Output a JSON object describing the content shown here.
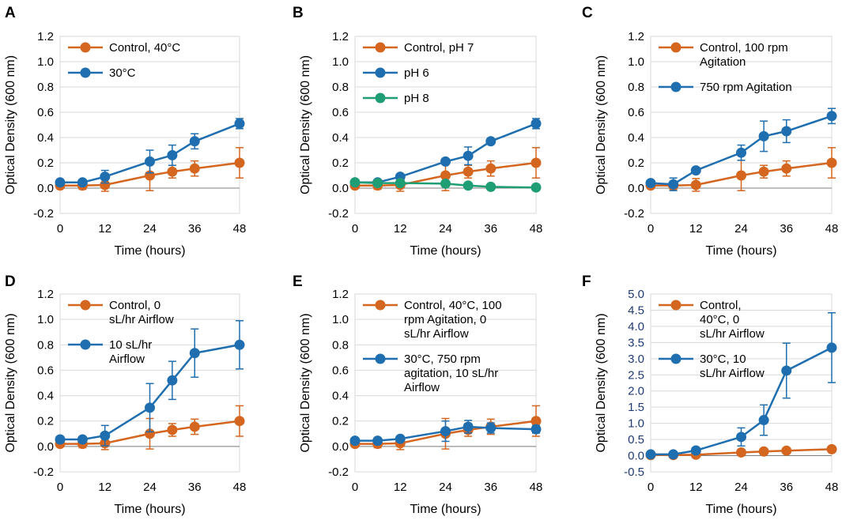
{
  "figure": {
    "colors": {
      "orange": "#d4661f",
      "blue": "#1f6fb0",
      "green": "#1f9e76",
      "navy": "#1f3a75",
      "grid": "#d9d9d9",
      "axis": "#000000"
    }
  },
  "chart_data": [
    {
      "panel": "A",
      "type": "line",
      "title": "",
      "xlabel": "Time (hours)",
      "ylabel": "Optical Density (600 nm)",
      "xticks": [
        0,
        12,
        24,
        36,
        48
      ],
      "xlim": [
        0,
        48
      ],
      "yticks": [
        "-0.2",
        "0.0",
        "0.2",
        "0.4",
        "0.6",
        "0.8",
        "1.0",
        "1.2"
      ],
      "ylim": [
        -0.2,
        1.2
      ],
      "legend": "top-left",
      "series": [
        {
          "name": "Control, 40°C",
          "name_lines": [
            "Control, 40°C"
          ],
          "color": "orange",
          "x": [
            0,
            6,
            12,
            24,
            30,
            36,
            48
          ],
          "y": [
            0.02,
            0.02,
            0.025,
            0.1,
            0.13,
            0.155,
            0.2
          ],
          "err": [
            0.01,
            0.03,
            0.05,
            0.12,
            0.05,
            0.06,
            0.12
          ]
        },
        {
          "name": "30°C",
          "name_lines": [
            "30°C"
          ],
          "color": "blue",
          "x": [
            0,
            6,
            12,
            24,
            30,
            36,
            48
          ],
          "y": [
            0.045,
            0.045,
            0.09,
            0.21,
            0.26,
            0.37,
            0.51
          ],
          "err": [
            0.02,
            0.02,
            0.05,
            0.09,
            0.08,
            0.06,
            0.04
          ]
        }
      ]
    },
    {
      "panel": "B",
      "type": "line",
      "title": "",
      "xlabel": "Time (hours)",
      "ylabel": "Optical Density (600 nm)",
      "xticks": [
        0,
        12,
        24,
        36,
        48
      ],
      "xlim": [
        0,
        48
      ],
      "yticks": [
        "-0.2",
        "0.0",
        "0.2",
        "0.4",
        "0.6",
        "0.8",
        "1.0",
        "1.2"
      ],
      "ylim": [
        -0.2,
        1.2
      ],
      "legend": "top-left",
      "series": [
        {
          "name": "Control, pH 7",
          "name_lines": [
            "Control, pH 7"
          ],
          "color": "orange",
          "x": [
            0,
            6,
            12,
            24,
            30,
            36,
            48
          ],
          "y": [
            0.02,
            0.02,
            0.025,
            0.1,
            0.13,
            0.155,
            0.2
          ],
          "err": [
            0.01,
            0.03,
            0.05,
            0.12,
            0.05,
            0.06,
            0.12
          ]
        },
        {
          "name": "pH 6",
          "name_lines": [
            "pH 6"
          ],
          "color": "blue",
          "x": [
            0,
            6,
            12,
            24,
            30,
            36,
            48
          ],
          "y": [
            0.045,
            0.045,
            0.09,
            0.21,
            0.255,
            0.37,
            0.51
          ],
          "err": [
            0.02,
            0.02,
            0.02,
            0.02,
            0.07,
            0.02,
            0.04
          ]
        },
        {
          "name": "pH 8",
          "name_lines": [
            "pH 8"
          ],
          "color": "green",
          "x": [
            0,
            6,
            12,
            24,
            30,
            36,
            48
          ],
          "y": [
            0.045,
            0.04,
            0.04,
            0.035,
            0.02,
            0.01,
            0.005
          ],
          "err": [
            0.01,
            0.01,
            0.01,
            0.01,
            0.01,
            0.01,
            0.01
          ]
        }
      ]
    },
    {
      "panel": "C",
      "type": "line",
      "title": "",
      "xlabel": "Time (hours)",
      "ylabel": "Optical Density (600 nm)",
      "xticks": [
        0,
        12,
        24,
        36,
        48
      ],
      "xlim": [
        0,
        48
      ],
      "yticks": [
        "-0.2",
        "0.0",
        "0.2",
        "0.4",
        "0.6",
        "0.8",
        "1.0",
        "1.2"
      ],
      "ylim": [
        -0.2,
        1.2
      ],
      "legend": "top-left",
      "series": [
        {
          "name": "Control, 100 rpm Agitation",
          "name_lines": [
            "Control, 100 rpm",
            "Agitation"
          ],
          "color": "orange",
          "x": [
            0,
            6,
            12,
            24,
            30,
            36,
            48
          ],
          "y": [
            0.02,
            0.02,
            0.025,
            0.1,
            0.13,
            0.155,
            0.2
          ],
          "err": [
            0.01,
            0.03,
            0.05,
            0.12,
            0.05,
            0.06,
            0.12
          ]
        },
        {
          "name": "750 rpm Agitation",
          "name_lines": [
            "750 rpm Agitation"
          ],
          "color": "blue",
          "x": [
            0,
            6,
            12,
            24,
            30,
            36,
            48
          ],
          "y": [
            0.04,
            0.03,
            0.14,
            0.28,
            0.41,
            0.45,
            0.57
          ],
          "err": [
            0.02,
            0.05,
            0.02,
            0.06,
            0.12,
            0.09,
            0.06
          ]
        }
      ]
    },
    {
      "panel": "D",
      "type": "line",
      "title": "",
      "xlabel": "Time (hours)",
      "ylabel": "Optical Density (600 nm)",
      "xticks": [
        0,
        12,
        24,
        36,
        48
      ],
      "xlim": [
        0,
        48
      ],
      "yticks": [
        "-0.2",
        "0.0",
        "0.2",
        "0.4",
        "0.6",
        "0.8",
        "1.0",
        "1.2"
      ],
      "ylim": [
        -0.2,
        1.2
      ],
      "legend": "top-left",
      "series": [
        {
          "name": "Control, 0 sL/hr Airflow",
          "name_lines": [
            "Control, 0",
            "sL/hr Airflow"
          ],
          "color": "orange",
          "x": [
            0,
            6,
            12,
            24,
            30,
            36,
            48
          ],
          "y": [
            0.02,
            0.02,
            0.025,
            0.1,
            0.13,
            0.155,
            0.2
          ],
          "err": [
            0.01,
            0.03,
            0.05,
            0.12,
            0.05,
            0.06,
            0.12
          ]
        },
        {
          "name": "10 sL/hr Airflow",
          "name_lines": [
            "10 sL/hr",
            "Airflow"
          ],
          "color": "blue",
          "x": [
            0,
            6,
            12,
            24,
            30,
            36,
            48
          ],
          "y": [
            0.055,
            0.055,
            0.085,
            0.305,
            0.52,
            0.735,
            0.8
          ],
          "err": [
            0.02,
            0.02,
            0.08,
            0.19,
            0.15,
            0.19,
            0.19
          ]
        }
      ]
    },
    {
      "panel": "E",
      "type": "line",
      "title": "",
      "xlabel": "Time (hours)",
      "ylabel": "Optical Density (600 nm)",
      "xticks": [
        0,
        12,
        24,
        36,
        48
      ],
      "xlim": [
        0,
        48
      ],
      "yticks": [
        "-0.2",
        "0.0",
        "0.2",
        "0.4",
        "0.6",
        "0.8",
        "1.0",
        "1.2"
      ],
      "ylim": [
        -0.2,
        1.2
      ],
      "legend": "top-left",
      "series": [
        {
          "name": "Control, 40°C, 100 rpm Agitation, 0 sL/hr Airflow",
          "name_lines": [
            "Control, 40°C, 100",
            "rpm Agitation, 0",
            "sL/hr Airflow"
          ],
          "color": "orange",
          "x": [
            0,
            6,
            12,
            24,
            30,
            36,
            48
          ],
          "y": [
            0.02,
            0.02,
            0.025,
            0.1,
            0.13,
            0.155,
            0.2
          ],
          "err": [
            0.01,
            0.03,
            0.05,
            0.12,
            0.05,
            0.06,
            0.12
          ]
        },
        {
          "name": "30°C, 750 rpm agitation, 10 sL/hr Airflow",
          "name_lines": [
            "30°C, 750 rpm",
            "agitation, 10 sL/hr",
            "Airflow"
          ],
          "color": "blue",
          "x": [
            0,
            6,
            12,
            24,
            30,
            36,
            48
          ],
          "y": [
            0.045,
            0.045,
            0.06,
            0.12,
            0.155,
            0.145,
            0.135
          ],
          "err": [
            0.02,
            0.02,
            0.02,
            0.08,
            0.05,
            0.04,
            0.03
          ]
        }
      ]
    },
    {
      "panel": "F",
      "type": "line",
      "title": "",
      "xlabel": "Time (hours)",
      "ylabel": "Optical Density (600 nm)",
      "xticks": [
        0,
        12,
        24,
        36,
        48
      ],
      "xlim": [
        0,
        48
      ],
      "yticks": [
        "-0.5",
        "0.0",
        "0.5",
        "1.0",
        "1.5",
        "2.0",
        "2.5",
        "3.0",
        "3.5",
        "4.0",
        "4.5",
        "5.0"
      ],
      "ylim": [
        -0.5,
        5.0
      ],
      "ytick_color": "navy",
      "legend": "top-left",
      "series": [
        {
          "name": "Control, 40°C, 0 sL/hr Airflow",
          "name_lines": [
            "Control,",
            "40°C, 0",
            "sL/hr Airflow"
          ],
          "color": "orange",
          "x": [
            0,
            6,
            12,
            24,
            30,
            36,
            48
          ],
          "y": [
            0.02,
            0.02,
            0.03,
            0.1,
            0.13,
            0.155,
            0.2
          ],
          "err": [
            0.01,
            0.02,
            0.03,
            0.05,
            0.04,
            0.04,
            0.05
          ]
        },
        {
          "name": "30°C, 10 sL/hr Airflow",
          "name_lines": [
            "30°C, 10",
            "sL/hr Airflow"
          ],
          "color": "blue",
          "x": [
            0,
            6,
            12,
            24,
            30,
            36,
            48
          ],
          "y": [
            0.04,
            0.04,
            0.16,
            0.58,
            1.1,
            2.63,
            3.34
          ],
          "err": [
            0.02,
            0.02,
            0.08,
            0.28,
            0.47,
            0.85,
            1.08
          ]
        }
      ]
    }
  ]
}
